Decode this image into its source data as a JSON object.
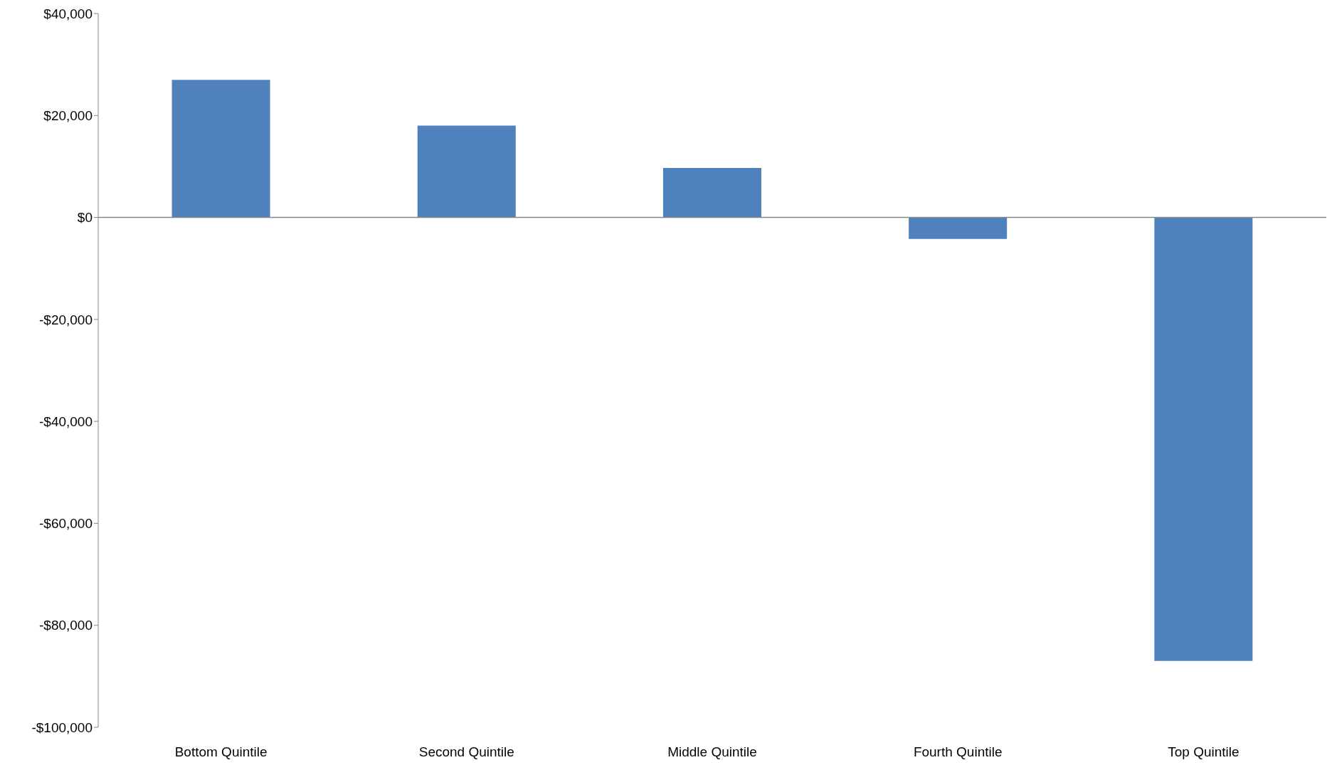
{
  "chart_data": {
    "type": "bar",
    "categories": [
      "Bottom Quintile",
      "Second Quintile",
      "Middle Quintile",
      "Fourth Quintile",
      "Top Quintile"
    ],
    "values": [
      27000,
      18000,
      9700,
      -4200,
      -87000
    ],
    "color": "#4f81bd",
    "ylim": [
      -100000,
      40000
    ],
    "yticks": [
      {
        "value": -100000,
        "label": "-$100,000"
      },
      {
        "value": -80000,
        "label": "-$80,000"
      },
      {
        "value": -60000,
        "label": "-$60,000"
      },
      {
        "value": -40000,
        "label": "-$40,000"
      },
      {
        "value": -20000,
        "label": "-$20,000"
      },
      {
        "value": 0,
        "label": "$0"
      },
      {
        "value": 20000,
        "label": "$20,000"
      },
      {
        "value": 40000,
        "label": "$40,000"
      }
    ],
    "legend": false
  }
}
